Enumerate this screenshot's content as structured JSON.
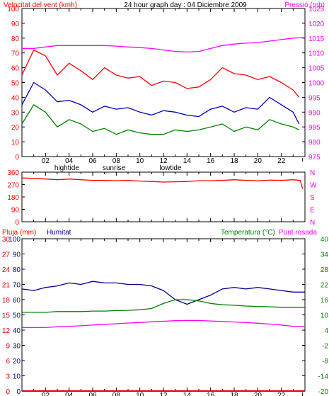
{
  "title": "24 hour graph day : 04 Diciembre 2009",
  "colors": {
    "background": "#ffffff",
    "frame": "#000000",
    "gust": "#ff0000",
    "wind_avg": "#0000c0",
    "wind_min": "#008000",
    "pressure": "#ff00ff",
    "rain": "#e00000",
    "humidity": "#000090",
    "temperature": "#008000",
    "dewpoint": "#ff00ff"
  },
  "x_ticks": [
    "02",
    "04",
    "06",
    "08",
    "10",
    "12",
    "14",
    "16",
    "18",
    "20",
    "22"
  ],
  "events": [
    {
      "label": "hightide",
      "x": 3.8
    },
    {
      "label": "sunrise",
      "x": 7.8
    },
    {
      "label": "lowtide",
      "x": 12.6
    }
  ],
  "chart_data": [
    {
      "type": "line",
      "panel": "wind",
      "left_axis_label": "Velocitat del vent (kmh)",
      "right_axis_label": "Pressió (mb)",
      "x_range": [
        0,
        24
      ],
      "left_ylim": [
        0,
        100
      ],
      "left_ticks": [
        0,
        10,
        20,
        30,
        40,
        50,
        60,
        70,
        80,
        90,
        100
      ],
      "right_ylim": [
        975,
        1025
      ],
      "right_ticks": [
        975,
        980,
        985,
        990,
        995,
        1000,
        1005,
        1010,
        1015,
        1020,
        1025
      ],
      "series": [
        {
          "key": "gust",
          "axis": "left",
          "x": [
            0,
            1,
            2,
            3,
            4,
            5,
            6,
            7,
            8,
            9,
            10,
            11,
            12,
            13,
            14,
            15,
            16,
            17,
            18,
            19,
            20,
            21,
            22,
            23,
            23.5
          ],
          "values": [
            55,
            72,
            68,
            55,
            63,
            58,
            52,
            60,
            55,
            53,
            54,
            48,
            51,
            50,
            46,
            47,
            52,
            60,
            56,
            55,
            52,
            54,
            50,
            45,
            40
          ]
        },
        {
          "key": "wind_avg",
          "axis": "left",
          "x": [
            0,
            1,
            2,
            3,
            4,
            5,
            6,
            7,
            8,
            9,
            10,
            11,
            12,
            13,
            14,
            15,
            16,
            17,
            18,
            19,
            20,
            21,
            22,
            23,
            23.5
          ],
          "values": [
            35,
            50,
            45,
            37,
            38,
            35,
            30,
            34,
            32,
            33,
            30,
            28,
            31,
            30,
            28,
            27,
            32,
            34,
            30,
            33,
            32,
            40,
            35,
            30,
            22
          ]
        },
        {
          "key": "wind_min",
          "axis": "left",
          "x": [
            0,
            1,
            2,
            3,
            4,
            5,
            6,
            7,
            8,
            9,
            10,
            11,
            12,
            13,
            14,
            15,
            16,
            17,
            18,
            19,
            20,
            21,
            22,
            23,
            23.5
          ],
          "values": [
            22,
            35,
            30,
            20,
            25,
            22,
            17,
            19,
            15,
            18,
            16,
            15,
            15,
            18,
            17,
            18,
            20,
            22,
            17,
            20,
            18,
            25,
            22,
            20,
            18
          ]
        },
        {
          "key": "pressure",
          "axis": "right",
          "x": [
            0,
            1,
            2,
            3,
            4,
            5,
            6,
            7,
            8,
            9,
            10,
            11,
            12,
            13,
            14,
            15,
            16,
            17,
            18,
            19,
            20,
            21,
            22,
            23,
            24
          ],
          "values": [
            1011.5,
            1011.5,
            1012,
            1012.5,
            1012.5,
            1012.5,
            1012.5,
            1012.5,
            1012.3,
            1012,
            1011.8,
            1011.5,
            1011,
            1010.5,
            1010.3,
            1010.5,
            1011.5,
            1012.5,
            1013,
            1013.3,
            1013.5,
            1014,
            1014.5,
            1015,
            1015.2
          ]
        }
      ]
    },
    {
      "type": "line",
      "panel": "direction",
      "x_range": [
        0,
        24
      ],
      "left_ylim": [
        0,
        360
      ],
      "left_ticks": [
        0,
        90,
        180,
        270,
        360
      ],
      "right_labels": [
        "N",
        "W",
        "S",
        "E",
        "N"
      ],
      "series": [
        {
          "key": "wind_dir",
          "axis": "left",
          "x": [
            0,
            1,
            2,
            3,
            4,
            5,
            6,
            7,
            8,
            9,
            10,
            11,
            12,
            13,
            14,
            15,
            16,
            17,
            18,
            19,
            20,
            21,
            22,
            23,
            23.6,
            23.8
          ],
          "values": [
            318,
            315,
            310,
            305,
            310,
            305,
            300,
            300,
            298,
            300,
            295,
            292,
            288,
            290,
            292,
            298,
            298,
            300,
            305,
            300,
            298,
            302,
            300,
            305,
            300,
            240
          ]
        }
      ]
    },
    {
      "type": "line",
      "panel": "climate",
      "left_axis_label": "Pluja (mm)",
      "left2_axis_label": "Humitat",
      "right_axis_label": "Temperatura (°C)",
      "right2_axis_label": "Punt rosada",
      "x_range": [
        0,
        24
      ],
      "left_ylim": [
        0,
        30
      ],
      "left_ticks": [
        0,
        3,
        6,
        9,
        12,
        15,
        18,
        21,
        24,
        27,
        30
      ],
      "left2_ylim": [
        0,
        100
      ],
      "left2_ticks": [
        0,
        10,
        20,
        30,
        40,
        50,
        60,
        70,
        80,
        90,
        100
      ],
      "right_ylim": [
        -20,
        40
      ],
      "right_ticks": [
        -20,
        -14,
        -8,
        -2,
        4,
        10,
        16,
        22,
        28,
        34,
        40
      ],
      "series": [
        {
          "key": "rain",
          "axis": "left",
          "x": [
            0,
            24
          ],
          "values": [
            0,
            0
          ]
        },
        {
          "key": "humidity",
          "axis": "left2",
          "x": [
            0,
            1,
            2,
            3,
            4,
            5,
            6,
            7,
            8,
            9,
            10,
            11,
            12,
            13,
            14,
            15,
            16,
            17,
            18,
            19,
            20,
            21,
            22,
            23,
            24
          ],
          "values": [
            67,
            66,
            68,
            69,
            71,
            70,
            72,
            71,
            71,
            70,
            70,
            69,
            66,
            60,
            57,
            60,
            63,
            67,
            68,
            67,
            68,
            67,
            66,
            65,
            65
          ]
        },
        {
          "key": "temperature",
          "axis": "right",
          "x": [
            0,
            1,
            2,
            3,
            4,
            5,
            6,
            7,
            8,
            9,
            10,
            11,
            12,
            13,
            14,
            15,
            16,
            17,
            18,
            19,
            20,
            21,
            22,
            23,
            24
          ],
          "values": [
            11,
            11,
            11,
            11.3,
            11.3,
            11.3,
            11.5,
            11.5,
            11.7,
            11.8,
            12,
            12.5,
            14.5,
            16,
            16,
            15.5,
            14.5,
            14,
            13.8,
            13.5,
            13.3,
            13.2,
            13,
            13,
            13
          ]
        },
        {
          "key": "dewpoint",
          "axis": "right",
          "x": [
            0,
            1,
            2,
            3,
            4,
            5,
            6,
            7,
            8,
            9,
            10,
            11,
            12,
            13,
            14,
            15,
            16,
            17,
            18,
            19,
            20,
            21,
            22,
            23,
            24
          ],
          "values": [
            5,
            5,
            5,
            5.3,
            5.5,
            5.7,
            6,
            6.3,
            6.5,
            6.8,
            7,
            7.3,
            7.5,
            7.7,
            7.8,
            7.8,
            7.6,
            7.4,
            7.2,
            7,
            6.7,
            6.4,
            6,
            5.5,
            5.5
          ]
        }
      ]
    }
  ]
}
